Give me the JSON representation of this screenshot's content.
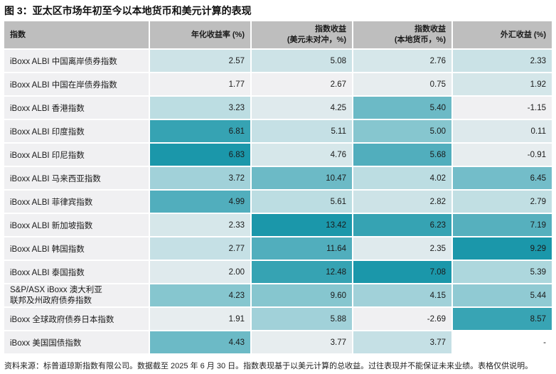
{
  "title": "图 3：亚太区市场年初至今以本地货币和美元计算的表现",
  "header": {
    "index": "指数",
    "annualized": "年化收益率 (%)",
    "usd_line1": "指数收益",
    "usd_line2": "(美元未对冲，%)",
    "local_line1": "指数收益",
    "local_line2": "(本地货币，%)",
    "fx": "外汇收益 (%)"
  },
  "rows": [
    {
      "name": "iBoxx ALBI 中国离岸债券指数",
      "annualized": "2.57",
      "usd": "5.08",
      "local": "2.76",
      "fx": "2.33"
    },
    {
      "name": "iBoxx ALBI 中国在岸债券指数",
      "annualized": "1.77",
      "usd": "2.67",
      "local": "0.75",
      "fx": "1.92"
    },
    {
      "name": "iBoxx ALBI 香港指数",
      "annualized": "3.23",
      "usd": "4.25",
      "local": "5.40",
      "fx": "-1.15"
    },
    {
      "name": "iBoxx ALBI 印度指数",
      "annualized": "6.81",
      "usd": "5.11",
      "local": "5.00",
      "fx": "0.11"
    },
    {
      "name": "iBoxx ALBI 印尼指数",
      "annualized": "6.83",
      "usd": "4.76",
      "local": "5.68",
      "fx": "-0.91"
    },
    {
      "name": "iBoxx ALBI 马来西亚指数",
      "annualized": "3.72",
      "usd": "10.47",
      "local": "4.02",
      "fx": "6.45"
    },
    {
      "name": "iBoxx ALBI 菲律宾指数",
      "annualized": "4.99",
      "usd": "5.61",
      "local": "2.82",
      "fx": "2.79"
    },
    {
      "name": "iBoxx ALBI 新加坡指数",
      "annualized": "2.33",
      "usd": "13.42",
      "local": "6.23",
      "fx": "7.19"
    },
    {
      "name": "iBoxx ALBI 韩国指数",
      "annualized": "2.77",
      "usd": "11.64",
      "local": "2.35",
      "fx": "9.29"
    },
    {
      "name": "iBoxx ALBI 泰国指数",
      "annualized": "2.00",
      "usd": "12.48",
      "local": "7.08",
      "fx": "5.39"
    },
    {
      "name_line1": "S&P/ASX iBoxx 澳大利亚",
      "name_line2": "联邦及州政府债券指数",
      "annualized": "4.23",
      "usd": "9.60",
      "local": "4.15",
      "fx": "5.44"
    },
    {
      "name": "iBoxx 全球政府债券日本指数",
      "annualized": "1.91",
      "usd": "5.88",
      "local": "-2.69",
      "fx": "8.57"
    },
    {
      "name": "iBoxx 美国国债指数",
      "annualized": "4.43",
      "usd": "3.77",
      "local": "3.77",
      "fx": "-"
    }
  ],
  "footnote": "资料来源：标普道琼斯指数有限公司。数据截至 2025 年 6 月 30 日。指数表现基于以美元计算的总收益。过往表现并不能保证未来业绩。表格仅供说明。",
  "colors": {
    "header_bg": "#bebebe",
    "label_bg": "#f0f0f2",
    "scale_low": "#f0f0f2",
    "scale_mid": "#bcdde2",
    "scale_high": "#1b97aa",
    "empty_cell": "#ffffff"
  }
}
